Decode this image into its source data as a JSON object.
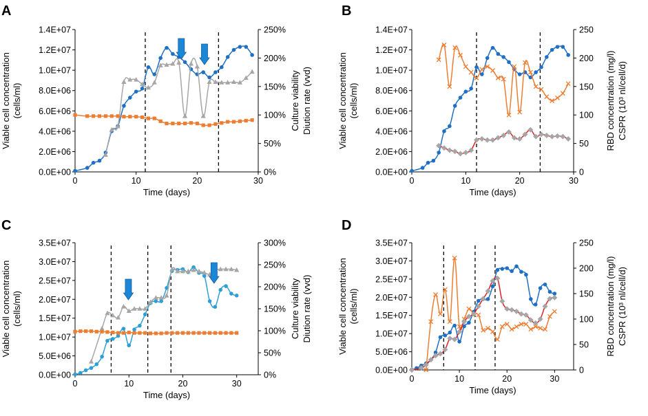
{
  "colors": {
    "blue": "#1F6FC5",
    "light_blue": "#2E9ED6",
    "gray": "#A6A6A6",
    "orange": "#ED7D31",
    "red": "#E02020",
    "arrow": "#1C87D6",
    "axis": "#000000"
  },
  "chart_data": [
    {
      "panel": "A",
      "type": "line",
      "xlabel": "Time (days)",
      "ylabel_lines": [
        "Viable cell concentration",
        "(cells/ml)"
      ],
      "y2label_lines": [
        "Culture viability",
        "Diution rate (vvd)"
      ],
      "xlim": [
        0,
        30
      ],
      "xticks": [
        "0",
        "10",
        "20",
        "30"
      ],
      "ylim": [
        0,
        14000000
      ],
      "yticks": [
        "0.0E+00",
        "2.0E+06",
        "4.0E+06",
        "6.0E+06",
        "8.0E+06",
        "1.0E+07",
        "1.2E+07",
        "1.4E+07"
      ],
      "y2lim": [
        0,
        250
      ],
      "y2ticks": [
        "0%",
        "50%",
        "100%",
        "150%",
        "200%",
        "250%"
      ],
      "vlines": [
        11.5,
        23.5
      ],
      "arrows": [
        17.4,
        21.2
      ],
      "series": [
        {
          "name": "Viable cell concentration",
          "axis": "left",
          "color": "#1F6FC5",
          "marker": "circle",
          "x": [
            0,
            2,
            3,
            4,
            5,
            6,
            7,
            8,
            9,
            10,
            11,
            12,
            13,
            14,
            15,
            16,
            17,
            18,
            19,
            20,
            21,
            22,
            23,
            24,
            25,
            26,
            27,
            28,
            29
          ],
          "y": [
            100000,
            400000,
            900000,
            1100000,
            1900000,
            4000000,
            4500000,
            6500000,
            7300000,
            7900000,
            8200000,
            10300000,
            9600000,
            11200000,
            12200000,
            11600000,
            11300000,
            10800000,
            10100000,
            9600000,
            9800000,
            9300000,
            9800000,
            10300000,
            11300000,
            12000000,
            12300000,
            12300000,
            11500000
          ]
        },
        {
          "name": "Culture viability",
          "axis": "right",
          "color": "#A6A6A6",
          "marker": "triangle",
          "x": [
            5,
            6,
            7,
            8,
            9,
            10,
            11,
            12,
            13,
            14,
            15,
            16,
            17,
            18,
            19,
            20,
            21,
            22,
            23,
            24,
            25,
            26,
            27,
            28,
            29
          ],
          "y": [
            30,
            74,
            80,
            158,
            162,
            162,
            154,
            148,
            157,
            187,
            188,
            190,
            192,
            98,
            190,
            185,
            98,
            158,
            158,
            157,
            157,
            158,
            157,
            165,
            176
          ]
        },
        {
          "name": "Dilution rate",
          "axis": "right",
          "color": "#ED7D31",
          "marker": "square",
          "x": [
            0,
            2,
            3,
            4,
            5,
            6,
            7,
            8,
            9,
            10,
            11,
            12,
            13,
            14,
            15,
            16,
            17,
            18,
            19,
            20,
            21,
            22,
            23,
            24,
            25,
            26,
            27,
            28,
            29
          ],
          "y": [
            100,
            98,
            98,
            98,
            98,
            98,
            98,
            97,
            97,
            97,
            96,
            94,
            94,
            89,
            85,
            85,
            85,
            85,
            86,
            85,
            82,
            82,
            84,
            86,
            88,
            88,
            89,
            90,
            91
          ]
        }
      ]
    },
    {
      "panel": "B",
      "type": "line",
      "xlabel": "Time (days)",
      "ylabel_lines": [
        "Viable cell concentration",
        "(cells/ml)"
      ],
      "y2label_lines": [
        "RBD concentration (mg/l)",
        "CSPR (10³ nl/cell/d)"
      ],
      "xlim": [
        0,
        30
      ],
      "xticks": [
        "0",
        "10",
        "20",
        "30"
      ],
      "ylim": [
        0,
        14000000
      ],
      "yticks": [
        "0.0E+00",
        "2.0E+06",
        "4.0E+06",
        "6.0E+06",
        "8.0E+06",
        "1.0E+07",
        "1.2E+07",
        "1.4E+07"
      ],
      "y2lim": [
        0,
        250
      ],
      "y2ticks": [
        "0",
        "50",
        "100",
        "150",
        "200",
        "250"
      ],
      "vlines": [
        12,
        23.8
      ],
      "series": [
        {
          "name": "Viable cell concentration",
          "axis": "left",
          "color": "#1F6FC5",
          "marker": "circle",
          "x": [
            0,
            2,
            3,
            4,
            5,
            6,
            7,
            8,
            9,
            10,
            11,
            12,
            13,
            14,
            15,
            16,
            17,
            18,
            19,
            20,
            21,
            22,
            23,
            24,
            25,
            26,
            27,
            28,
            29
          ],
          "y": [
            100000,
            400000,
            900000,
            1100000,
            1900000,
            4000000,
            4500000,
            6500000,
            7300000,
            7900000,
            8200000,
            10300000,
            9600000,
            11200000,
            12200000,
            11600000,
            11300000,
            10800000,
            10100000,
            9600000,
            9800000,
            9300000,
            9800000,
            10300000,
            11300000,
            12000000,
            12300000,
            12300000,
            11500000
          ]
        },
        {
          "name": "RBD concentration",
          "axis": "right",
          "color": "#ED7D31",
          "marker": "cross",
          "x": [
            5,
            6,
            7,
            8,
            9,
            10,
            11,
            12,
            13,
            14,
            15,
            16,
            17,
            18,
            19,
            20,
            21,
            22,
            23,
            24,
            25,
            26,
            27,
            28,
            29
          ],
          "y": [
            197,
            223,
            150,
            218,
            205,
            185,
            175,
            165,
            180,
            185,
            178,
            165,
            163,
            100,
            185,
            105,
            192,
            175,
            150,
            145,
            132,
            125,
            130,
            138,
            155
          ]
        },
        {
          "name": "CSPR",
          "axis": "right",
          "color": "#A6A6A6",
          "marker": "diamond",
          "line_color": "#E02020",
          "x": [
            5,
            6,
            7,
            8,
            9,
            10,
            11,
            12,
            13,
            14,
            15,
            16,
            17,
            18,
            19,
            20,
            21,
            22,
            23,
            24,
            25,
            26,
            27,
            28,
            29
          ],
          "y": [
            46,
            42,
            38,
            36,
            32,
            34,
            38,
            56,
            58,
            56,
            56,
            60,
            64,
            70,
            60,
            58,
            66,
            74,
            62,
            66,
            64,
            62,
            63,
            62,
            58
          ]
        }
      ]
    },
    {
      "panel": "C",
      "type": "line",
      "xlabel": "Time (days)",
      "ylabel_lines": [
        "Viable cell concentration",
        "(cells/ml)"
      ],
      "y2label_lines": [
        "Culture viability",
        "Diution rate (vvd)"
      ],
      "xlim": [
        0,
        34
      ],
      "xticks": [
        "0",
        "10",
        "20",
        "30"
      ],
      "ylim": [
        0,
        35000000
      ],
      "yticks": [
        "0.0E+00",
        "5.0E+06",
        "1.0E+07",
        "1.5E+07",
        "2.0E+07",
        "2.5E+07",
        "3.0E+07",
        "3.5E+07"
      ],
      "y2lim": [
        0,
        300
      ],
      "y2ticks": [
        "0%",
        "50%",
        "100%",
        "150%",
        "200%",
        "250%",
        "300%"
      ],
      "vlines": [
        6.7,
        13.5,
        17.8
      ],
      "arrows": [
        9.9,
        25.8
      ],
      "series": [
        {
          "name": "Viable cell concentration",
          "axis": "left",
          "color": "#2E9ED6",
          "marker": "circle",
          "x": [
            0,
            1,
            2,
            3,
            4,
            5,
            6,
            7,
            8,
            9,
            10,
            11,
            12,
            13,
            14,
            15,
            16,
            17,
            18,
            19,
            20,
            21,
            22,
            23,
            24,
            25,
            26,
            27,
            28,
            29,
            30
          ],
          "y": [
            100000,
            500000,
            1200000,
            1800000,
            2800000,
            4800000,
            9000000,
            9500000,
            10300000,
            12200000,
            7800000,
            12000000,
            13000000,
            16000000,
            19000000,
            19500000,
            19500000,
            23000000,
            27500000,
            27800000,
            28000000,
            27200000,
            28500000,
            27000000,
            26200000,
            19500000,
            18000000,
            22500000,
            23500000,
            21500000,
            21000000
          ]
        },
        {
          "name": "Culture viability",
          "axis": "right",
          "color": "#A6A6A6",
          "marker": "triangle",
          "x": [
            3,
            5,
            6,
            7,
            8,
            9,
            10,
            11,
            12,
            13,
            14,
            15,
            16,
            17,
            18,
            19,
            20,
            21,
            22,
            23,
            24,
            25,
            26,
            27,
            28,
            29,
            30
          ],
          "y": [
            30,
            105,
            140,
            135,
            130,
            155,
            145,
            150,
            150,
            150,
            165,
            175,
            175,
            180,
            240,
            235,
            235,
            235,
            238,
            235,
            232,
            228,
            238,
            240,
            240,
            240,
            238
          ]
        },
        {
          "name": "Dilution rate",
          "axis": "right",
          "color": "#ED7D31",
          "marker": "square",
          "x": [
            0,
            1,
            2,
            3,
            4,
            5,
            6,
            7,
            8,
            9,
            10,
            11,
            12,
            13,
            14,
            15,
            16,
            17,
            18,
            19,
            20,
            21,
            22,
            23,
            24,
            25,
            26,
            27,
            28,
            29,
            30
          ],
          "y": [
            98,
            99,
            99,
            99,
            98,
            98,
            97,
            96,
            95,
            95,
            96,
            95,
            95,
            95,
            94,
            94,
            94,
            95,
            95,
            95,
            95,
            95,
            95,
            95,
            95,
            95,
            95,
            95,
            95,
            95,
            95
          ]
        }
      ]
    },
    {
      "panel": "D",
      "type": "line",
      "xlabel": "Time (days)",
      "ylabel_lines": [
        "Viable cell concentration",
        "(cells/ml)"
      ],
      "y2label_lines": [
        "RBD concentration (mg/l)",
        "CSPR (10³ nl/cell/d)"
      ],
      "xlim": [
        0,
        34
      ],
      "xticks": [
        "0",
        "10",
        "20",
        "30"
      ],
      "ylim": [
        0,
        35000000
      ],
      "yticks": [
        "0.0E+00",
        "5.0E+06",
        "1.0E+07",
        "1.5E+07",
        "2.0E+07",
        "2.5E+07",
        "3.0E+07",
        "3.5E+07"
      ],
      "y2lim": [
        0,
        250
      ],
      "y2ticks": [
        "0",
        "50",
        "100",
        "150",
        "200",
        "250"
      ],
      "vlines": [
        6.7,
        13.3,
        17.5
      ],
      "series": [
        {
          "name": "Viable cell concentration",
          "axis": "left",
          "color": "#1F6FC5",
          "marker": "circle",
          "x": [
            0,
            1,
            2,
            3,
            4,
            5,
            6,
            7,
            8,
            9,
            10,
            11,
            12,
            13,
            14,
            15,
            16,
            17,
            18,
            19,
            20,
            21,
            22,
            23,
            24,
            25,
            26,
            27,
            28,
            29,
            30
          ],
          "y": [
            100000,
            500000,
            1200000,
            1800000,
            2800000,
            4800000,
            9000000,
            9500000,
            10300000,
            12200000,
            7800000,
            12000000,
            13000000,
            16000000,
            19000000,
            19500000,
            19500000,
            23000000,
            27500000,
            27800000,
            28000000,
            27200000,
            28500000,
            27000000,
            26200000,
            19500000,
            18000000,
            22500000,
            23500000,
            21500000,
            21000000
          ]
        },
        {
          "name": "RBD concentration",
          "axis": "right",
          "color": "#ED7D31",
          "marker": "cross",
          "x": [
            3,
            4,
            5,
            6,
            7,
            8,
            9,
            10,
            11,
            12,
            13,
            14,
            15,
            16,
            17,
            18,
            19,
            20,
            21,
            22,
            23,
            24,
            25,
            26,
            27,
            28,
            29,
            30
          ],
          "y": [
            0,
            95,
            148,
            110,
            158,
            95,
            220,
            85,
            100,
            120,
            110,
            108,
            78,
            82,
            75,
            60,
            85,
            90,
            80,
            85,
            90,
            90,
            80,
            85,
            82,
            80,
            105,
            115
          ]
        },
        {
          "name": "CSPR",
          "axis": "right",
          "color": "#A6A6A6",
          "marker": "diamond",
          "line_color": "#E02020",
          "x": [
            0,
            2,
            3,
            4,
            5,
            6,
            7,
            8,
            9,
            10,
            11,
            12,
            13,
            14,
            15,
            16,
            17,
            18,
            19,
            20,
            21,
            22,
            23,
            24,
            25,
            26,
            27,
            28,
            29,
            30
          ],
          "y": [
            0,
            4,
            10,
            20,
            28,
            32,
            40,
            62,
            60,
            75,
            95,
            105,
            110,
            125,
            140,
            155,
            175,
            180,
            135,
            120,
            118,
            115,
            110,
            108,
            98,
            92,
            100,
            125,
            140,
            142
          ]
        }
      ]
    }
  ]
}
